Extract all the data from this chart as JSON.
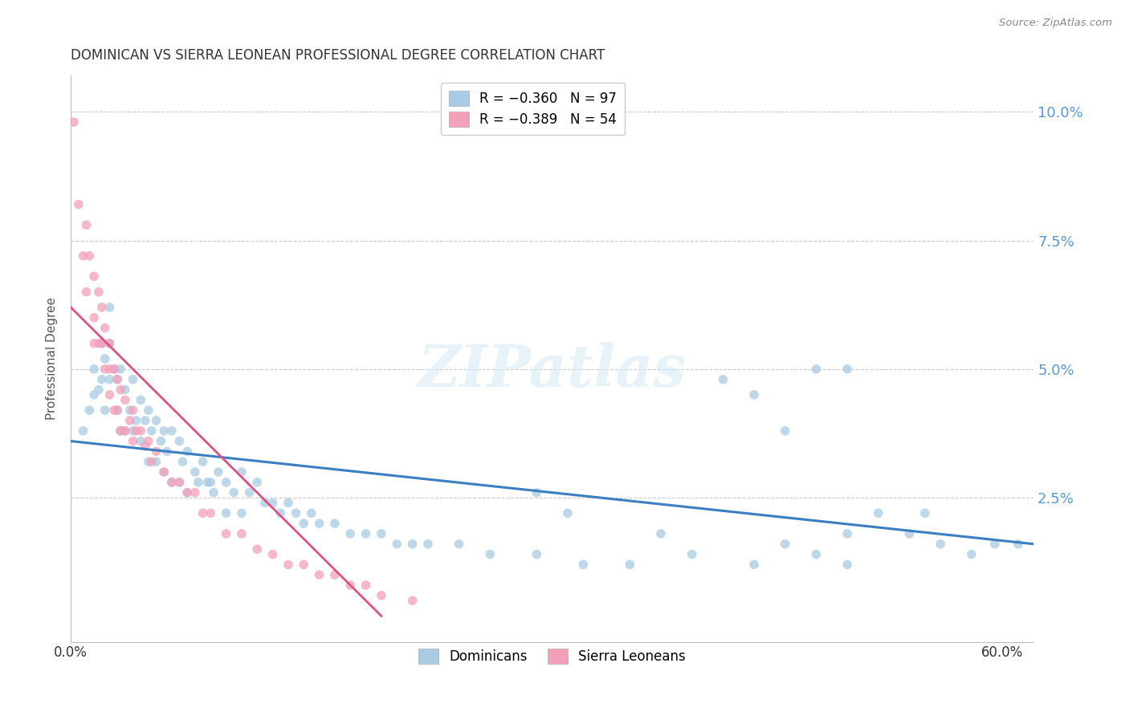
{
  "title": "DOMINICAN VS SIERRA LEONEAN PROFESSIONAL DEGREE CORRELATION CHART",
  "source": "Source: ZipAtlas.com",
  "ylabel": "Professional Degree",
  "blue_color": "#a8cce4",
  "pink_color": "#f4a0b8",
  "blue_line_color": "#3a7fc1",
  "pink_line_color": "#e05080",
  "watermark_text": "ZIPatlas",
  "legend_r1": "R = −0.360   N = 97",
  "legend_r2": "R = −0.389   N = 54",
  "legend_dom": "Dominicans",
  "legend_sl": "Sierra Leoneans",
  "xmin": 0.0,
  "xmax": 0.62,
  "ymin": -0.003,
  "ymax": 0.107,
  "ytick_vals": [
    0.025,
    0.05,
    0.075,
    0.1
  ],
  "ytick_labels": [
    "2.5%",
    "5.0%",
    "7.5%",
    "10.0%"
  ],
  "xtick_vals": [
    0.0,
    0.1,
    0.2,
    0.3,
    0.4,
    0.5,
    0.6
  ],
  "xtick_show": [
    0.0,
    0.6
  ],
  "xtick_labels_sparse": [
    "0.0%",
    "",
    "",
    "",
    "",
    "",
    "60.0%"
  ],
  "dom_x": [
    0.008,
    0.012,
    0.015,
    0.015,
    0.018,
    0.02,
    0.02,
    0.022,
    0.022,
    0.025,
    0.025,
    0.025,
    0.028,
    0.03,
    0.03,
    0.032,
    0.032,
    0.035,
    0.035,
    0.038,
    0.04,
    0.04,
    0.042,
    0.045,
    0.045,
    0.048,
    0.05,
    0.05,
    0.052,
    0.055,
    0.055,
    0.058,
    0.06,
    0.06,
    0.062,
    0.065,
    0.065,
    0.07,
    0.07,
    0.072,
    0.075,
    0.075,
    0.08,
    0.082,
    0.085,
    0.088,
    0.09,
    0.092,
    0.095,
    0.1,
    0.1,
    0.105,
    0.11,
    0.11,
    0.115,
    0.12,
    0.125,
    0.13,
    0.135,
    0.14,
    0.145,
    0.15,
    0.155,
    0.16,
    0.17,
    0.18,
    0.19,
    0.2,
    0.21,
    0.22,
    0.23,
    0.25,
    0.27,
    0.3,
    0.33,
    0.36,
    0.4,
    0.44,
    0.46,
    0.48,
    0.5,
    0.52,
    0.54,
    0.56,
    0.58,
    0.595,
    0.61,
    0.3,
    0.32,
    0.38,
    0.42,
    0.5,
    0.55,
    0.44,
    0.46,
    0.48,
    0.5
  ],
  "dom_y": [
    0.038,
    0.042,
    0.05,
    0.045,
    0.046,
    0.055,
    0.048,
    0.052,
    0.042,
    0.062,
    0.055,
    0.048,
    0.05,
    0.048,
    0.042,
    0.05,
    0.038,
    0.046,
    0.038,
    0.042,
    0.048,
    0.038,
    0.04,
    0.044,
    0.036,
    0.04,
    0.042,
    0.032,
    0.038,
    0.04,
    0.032,
    0.036,
    0.038,
    0.03,
    0.034,
    0.038,
    0.028,
    0.036,
    0.028,
    0.032,
    0.034,
    0.026,
    0.03,
    0.028,
    0.032,
    0.028,
    0.028,
    0.026,
    0.03,
    0.028,
    0.022,
    0.026,
    0.03,
    0.022,
    0.026,
    0.028,
    0.024,
    0.024,
    0.022,
    0.024,
    0.022,
    0.02,
    0.022,
    0.02,
    0.02,
    0.018,
    0.018,
    0.018,
    0.016,
    0.016,
    0.016,
    0.016,
    0.014,
    0.014,
    0.012,
    0.012,
    0.014,
    0.045,
    0.038,
    0.05,
    0.05,
    0.022,
    0.018,
    0.016,
    0.014,
    0.016,
    0.016,
    0.026,
    0.022,
    0.018,
    0.048,
    0.018,
    0.022,
    0.012,
    0.016,
    0.014,
    0.012
  ],
  "sl_x": [
    0.002,
    0.005,
    0.008,
    0.01,
    0.01,
    0.012,
    0.015,
    0.015,
    0.015,
    0.018,
    0.018,
    0.02,
    0.02,
    0.022,
    0.022,
    0.025,
    0.025,
    0.025,
    0.028,
    0.028,
    0.03,
    0.03,
    0.032,
    0.032,
    0.035,
    0.035,
    0.038,
    0.04,
    0.04,
    0.042,
    0.045,
    0.048,
    0.05,
    0.052,
    0.055,
    0.06,
    0.065,
    0.07,
    0.075,
    0.08,
    0.085,
    0.09,
    0.1,
    0.11,
    0.12,
    0.13,
    0.14,
    0.15,
    0.16,
    0.17,
    0.18,
    0.19,
    0.2,
    0.22
  ],
  "sl_y": [
    0.098,
    0.082,
    0.072,
    0.078,
    0.065,
    0.072,
    0.068,
    0.06,
    0.055,
    0.065,
    0.055,
    0.062,
    0.055,
    0.058,
    0.05,
    0.055,
    0.05,
    0.045,
    0.05,
    0.042,
    0.048,
    0.042,
    0.046,
    0.038,
    0.044,
    0.038,
    0.04,
    0.042,
    0.036,
    0.038,
    0.038,
    0.035,
    0.036,
    0.032,
    0.034,
    0.03,
    0.028,
    0.028,
    0.026,
    0.026,
    0.022,
    0.022,
    0.018,
    0.018,
    0.015,
    0.014,
    0.012,
    0.012,
    0.01,
    0.01,
    0.008,
    0.008,
    0.006,
    0.005
  ],
  "blue_trendline_x": [
    0.0,
    0.62
  ],
  "blue_trendline_y": [
    0.036,
    0.016
  ],
  "pink_trendline_x": [
    0.0,
    0.2
  ],
  "pink_trendline_y": [
    0.062,
    0.002
  ]
}
